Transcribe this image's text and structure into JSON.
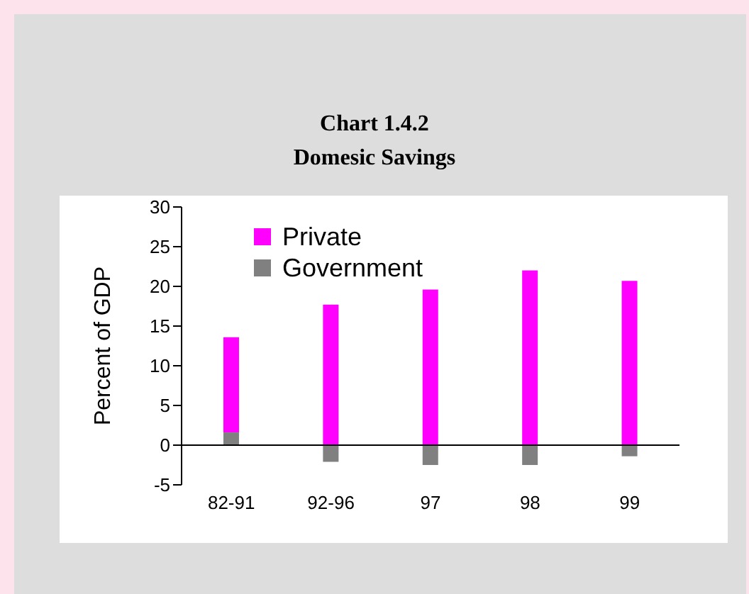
{
  "chart_data": {
    "type": "bar",
    "title": "Chart 1.4.2",
    "subtitle": "Domesic Savings",
    "ylabel": "Percent of GDP",
    "categories": [
      "82-91",
      "92-96",
      "97",
      "98",
      "99"
    ],
    "stacked": true,
    "series": [
      {
        "name": "Government",
        "color": "#808080",
        "values": [
          1.6,
          -2.1,
          -2.5,
          -2.5,
          -1.4
        ]
      },
      {
        "name": "Private",
        "color": "#ff00ff",
        "values": [
          12.0,
          17.7,
          19.6,
          22.0,
          20.7
        ]
      }
    ],
    "ylim": [
      -5,
      30
    ],
    "yticks": [
      -5,
      0,
      5,
      10,
      15,
      20,
      25,
      30
    ],
    "grid": false,
    "legend": "top left"
  }
}
